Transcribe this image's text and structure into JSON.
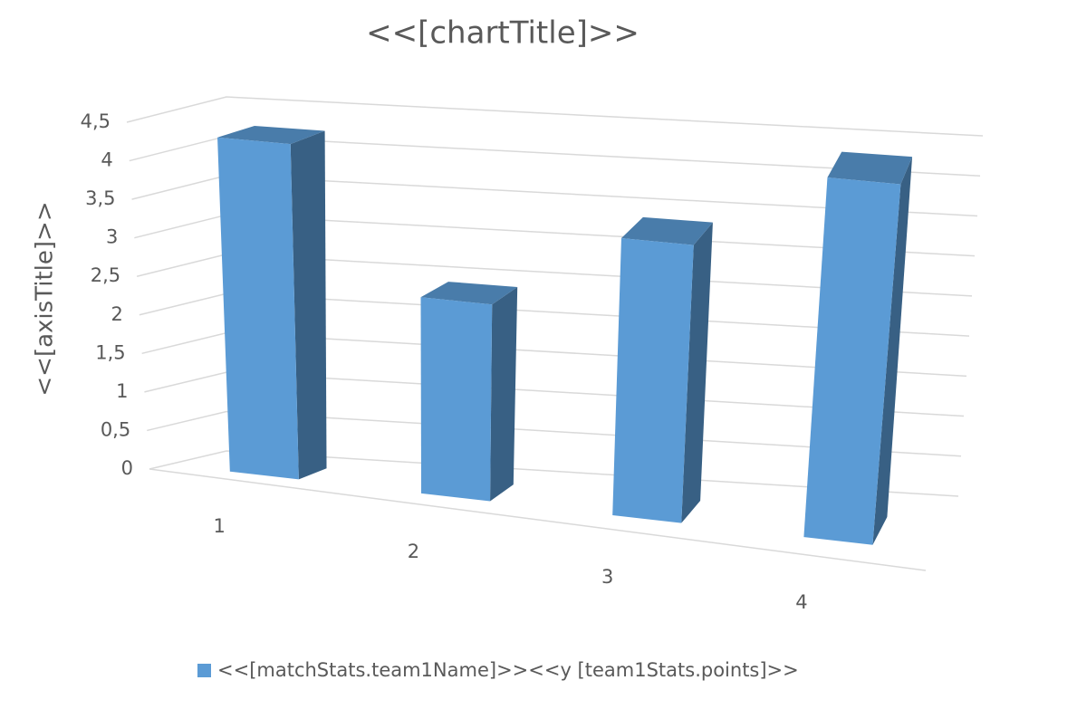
{
  "chart_data": {
    "type": "bar",
    "title": "<<[chartTitle]>>",
    "y_axis_title": "<<[axisTitle]>>",
    "categories": [
      "1",
      "2",
      "3",
      "4"
    ],
    "series": [
      {
        "name": "<<[matchStats.team1Name]>><<y [team1Stats.points]>>",
        "color": "#5b9bd5",
        "values": [
          4.3,
          2.5,
          3.5,
          4.5
        ]
      }
    ],
    "ylim": [
      0,
      4.5
    ],
    "yticks": [
      0,
      {
        "value": 0.5,
        "label": "0,5"
      },
      1,
      {
        "value": 1.5,
        "label": "1,5"
      },
      2,
      {
        "value": 2.5,
        "label": "2,5"
      },
      3,
      {
        "value": 3.5,
        "label": "3,5"
      },
      4,
      {
        "value": 4.5,
        "label": "4,5"
      }
    ],
    "grid": true,
    "legend": "bottom"
  }
}
